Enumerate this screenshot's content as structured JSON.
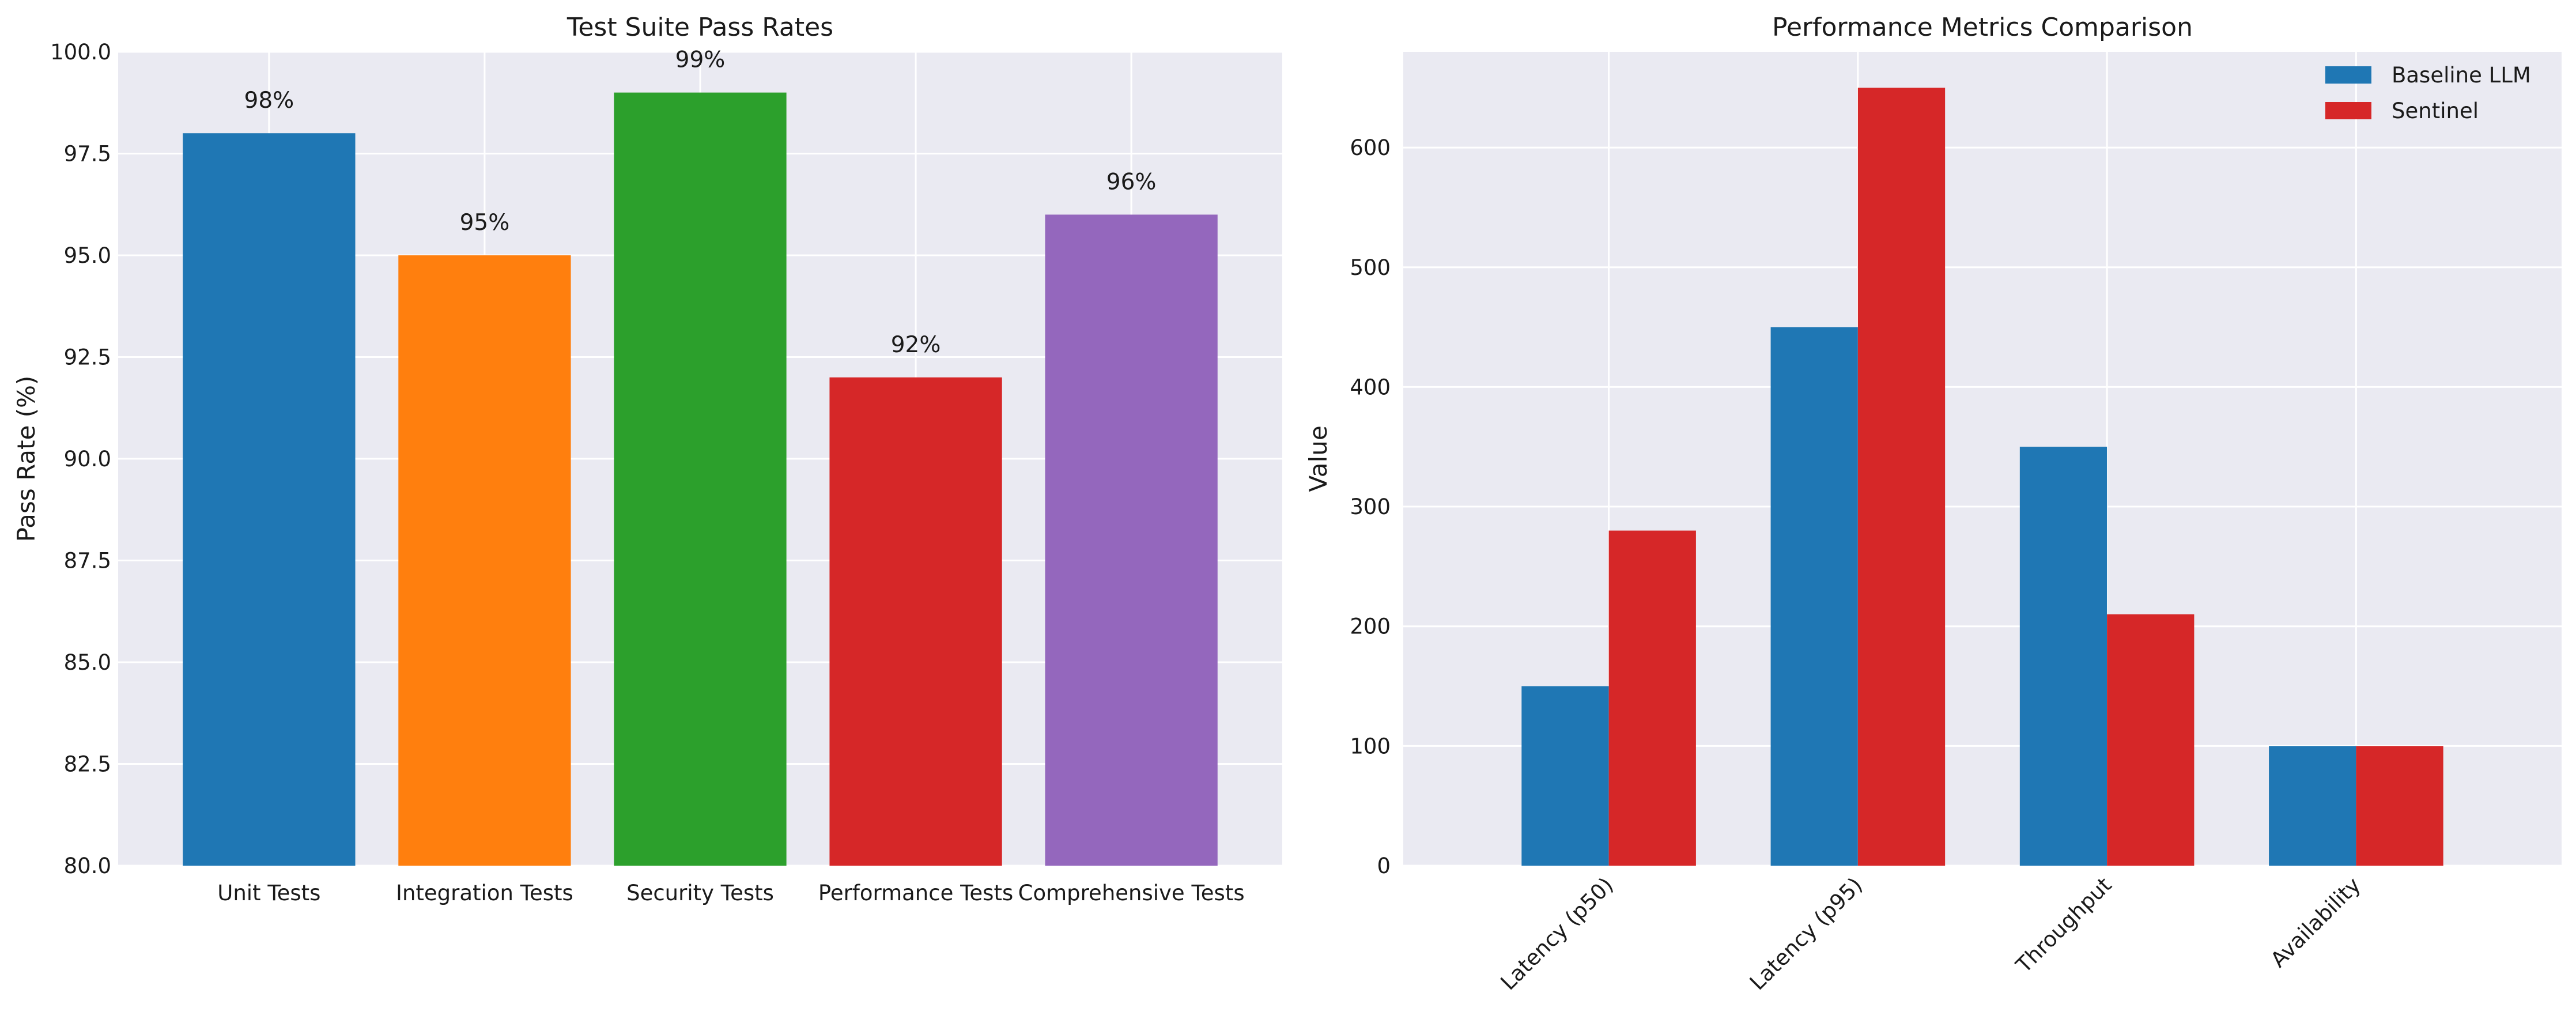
{
  "chart_data": [
    {
      "type": "bar",
      "title": "Test Suite Pass Rates",
      "xlabel": "",
      "ylabel": "Pass Rate (%)",
      "ylim": [
        80,
        100
      ],
      "yticks": [
        "80.0",
        "82.5",
        "85.0",
        "87.5",
        "90.0",
        "92.5",
        "95.0",
        "97.5",
        "100.0"
      ],
      "grid": true,
      "categories": [
        "Unit Tests",
        "Integration Tests",
        "Security Tests",
        "Performance Tests",
        "Comprehensive Tests"
      ],
      "values": [
        98,
        95,
        99,
        92,
        96
      ],
      "value_labels": [
        "98%",
        "95%",
        "99%",
        "92%",
        "96%"
      ],
      "colors": [
        "#1f77b4",
        "#ff7f0e",
        "#2ca02c",
        "#d62728",
        "#9467bd"
      ]
    },
    {
      "type": "bar",
      "title": "Performance Metrics Comparison",
      "xlabel": "",
      "ylabel": "Value",
      "ylim": [
        0,
        680
      ],
      "yticks": [
        "0",
        "100",
        "200",
        "300",
        "400",
        "500",
        "600"
      ],
      "grid": true,
      "legend_position": "top-right",
      "categories": [
        "Latency (p50)",
        "Latency (p95)",
        "Throughput",
        "Availability"
      ],
      "series": [
        {
          "name": "Baseline LLM",
          "values": [
            150,
            450,
            350,
            100
          ],
          "color": "#1f77b4"
        },
        {
          "name": "Sentinel",
          "values": [
            280,
            650,
            210,
            100
          ],
          "color": "#d62728"
        }
      ]
    }
  ],
  "theme": {
    "plot_background": "#eaeaf2",
    "grid_color": "#ffffff"
  }
}
